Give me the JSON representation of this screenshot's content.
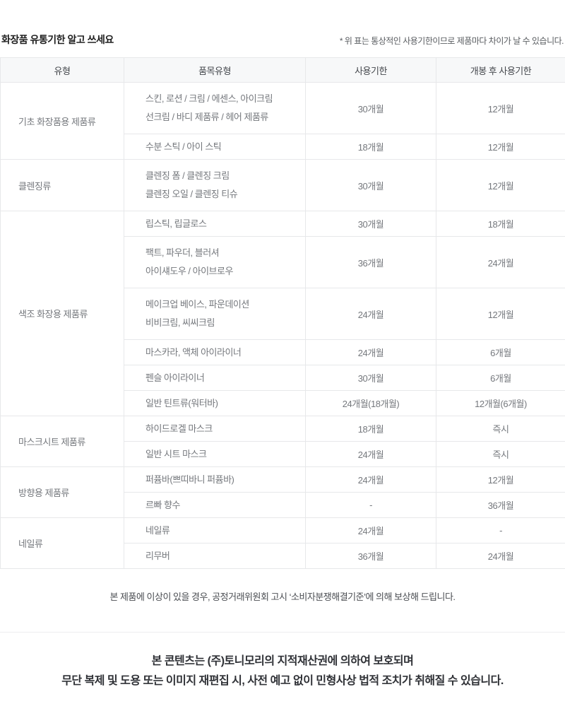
{
  "header": {
    "title": "화장품 유통기한 알고 쓰세요",
    "note": "* 위 표는 통상적인 사용기한이므로 제품마다 차이가 날 수 있습니다."
  },
  "table": {
    "columns": [
      "유형",
      "품목유형",
      "사용기한",
      "개봉 후 사용기한"
    ],
    "groups": [
      {
        "type": "기초 화장품용 제품류",
        "rows": [
          {
            "item": [
              "스킨, 로션 / 크림 / 에센스, 아이크림",
              "선크림 / 바디 제품류 / 헤어 제품류"
            ],
            "use_period": "30개월",
            "after_open": "12개월",
            "tall": true
          },
          {
            "item": [
              "수분 스틱 / 아이 스틱"
            ],
            "use_period": "18개월",
            "after_open": "12개월"
          }
        ]
      },
      {
        "type": "클렌징류",
        "rows": [
          {
            "item": [
              "클렌징 폼 / 클렌징 크림",
              "클렌징 오일 / 클렌징 티슈"
            ],
            "use_period": "30개월",
            "after_open": "12개월",
            "tall": true
          }
        ]
      },
      {
        "type": "색조 화장용 제품류",
        "rows": [
          {
            "item": [
              "립스틱, 립글로스"
            ],
            "use_period": "30개월",
            "after_open": "18개월"
          },
          {
            "item": [
              "팩트, 파우더, 블러셔",
              "아이섀도우 / 아이브로우"
            ],
            "use_period": "36개월",
            "after_open": "24개월",
            "tall": true
          },
          {
            "item": [
              "메이크업 베이스, 파운데이션",
              "비비크림, 씨씨크림"
            ],
            "use_period": "24개월",
            "after_open": "12개월",
            "tall": true
          },
          {
            "item": [
              "마스카라, 액체 아이라이너"
            ],
            "use_period": "24개월",
            "after_open": "6개월"
          },
          {
            "item": [
              "펜슬 아이라이너"
            ],
            "use_period": "30개월",
            "after_open": "6개월"
          },
          {
            "item": [
              "일반 틴트류(워터바)"
            ],
            "use_period": "24개월(18개월)",
            "after_open": "12개월(6개월)"
          }
        ]
      },
      {
        "type": "마스크시트 제품류",
        "rows": [
          {
            "item": [
              "하이드로겔 마스크"
            ],
            "use_period": "18개월",
            "after_open": "즉시"
          },
          {
            "item": [
              "일반 시트 마스크"
            ],
            "use_period": "24개월",
            "after_open": "즉시"
          }
        ]
      },
      {
        "type": "방향용 제품류",
        "rows": [
          {
            "item": [
              "퍼퓸바(쁘띠바니 퍼퓸바)"
            ],
            "use_period": "24개월",
            "after_open": "12개월"
          },
          {
            "item": [
              "르빠 향수"
            ],
            "use_period": "-",
            "after_open": "36개월"
          }
        ]
      },
      {
        "type": "네일류",
        "rows": [
          {
            "item": [
              "네일류"
            ],
            "use_period": "24개월",
            "after_open": "-"
          },
          {
            "item": [
              "리무버"
            ],
            "use_period": "36개월",
            "after_open": "24개월"
          }
        ]
      }
    ]
  },
  "footer": {
    "notice": "본 제품에 이상이 있을 경우, 공정거래위원회 고시 ‘소비자분쟁해결기준’에 의해 보상해 드립니다.",
    "copyright_line1": "본 콘텐츠는 (주)토니모리의 지적재산권에 의하여 보호되며",
    "copyright_line2": "무단 복제 및 도용 또는 이미지 재편집 시, 사전 예고 없이 민형사상 법적 조치가 취해질 수 있습니다."
  },
  "colors": {
    "header_bg": "#f7f8f9",
    "border": "#e7e8ea",
    "header_text": "#45484d",
    "cell_text": "#75787d",
    "title_text": "#1e1e1e",
    "copyright_text": "#2f3136"
  }
}
